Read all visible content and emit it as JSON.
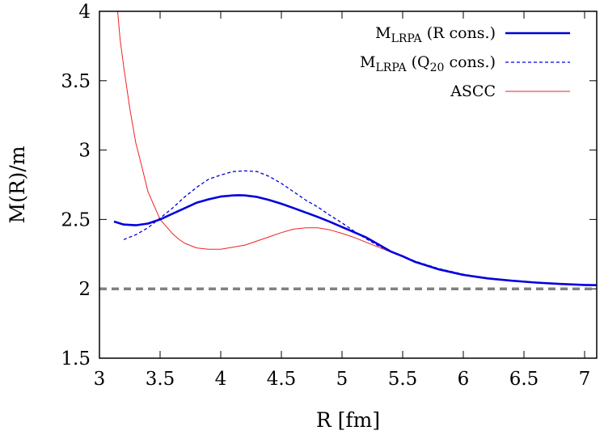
{
  "chart_data": {
    "type": "line",
    "xlabel": "R [fm]",
    "ylabel": "M(R)/m",
    "xlim": [
      3,
      7.1
    ],
    "ylim": [
      1.5,
      4
    ],
    "xticks": [
      "3",
      "3.5",
      "4",
      "4.5",
      "5",
      "5.5",
      "6",
      "6.5",
      "7"
    ],
    "yticks": [
      "1.5",
      "2",
      "2.5",
      "3",
      "3.5",
      "4"
    ],
    "legend_position": "top-right",
    "grid": false,
    "series": [
      {
        "name": "M",
        "name_sub": "LRPA",
        "name_suffix": " (R cons.)",
        "color": "#0000dd",
        "style": "solid-thick",
        "x": [
          3.12,
          3.2,
          3.3,
          3.4,
          3.5,
          3.6,
          3.7,
          3.8,
          3.9,
          4.0,
          4.1,
          4.15,
          4.2,
          4.3,
          4.4,
          4.5,
          4.6,
          4.7,
          4.8,
          4.9,
          5.0,
          5.1,
          5.2,
          5.3,
          5.4,
          5.5,
          5.6,
          5.8,
          6.0,
          6.2,
          6.4,
          6.6,
          6.8,
          7.0,
          7.1
        ],
        "y": [
          2.485,
          2.463,
          2.458,
          2.47,
          2.5,
          2.54,
          2.58,
          2.62,
          2.645,
          2.665,
          2.673,
          2.675,
          2.673,
          2.662,
          2.64,
          2.613,
          2.582,
          2.55,
          2.518,
          2.483,
          2.445,
          2.408,
          2.37,
          2.32,
          2.27,
          2.235,
          2.195,
          2.14,
          2.1,
          2.075,
          2.058,
          2.045,
          2.035,
          2.028,
          2.026
        ]
      },
      {
        "name": "M",
        "name_sub": "LRPA",
        "name_suffix": " (Q",
        "name_sub2": "20",
        "name_suffix2": " cons.)",
        "color": "#0000dd",
        "style": "dashed",
        "x": [
          3.2,
          3.3,
          3.4,
          3.5,
          3.6,
          3.7,
          3.8,
          3.9,
          4.0,
          4.1,
          4.2,
          4.3,
          4.4,
          4.5,
          4.6,
          4.7,
          4.8,
          4.9,
          5.0,
          5.1,
          5.2,
          5.3,
          5.4,
          5.5,
          5.6,
          5.8,
          6.0,
          6.2,
          6.4,
          6.6,
          6.8,
          7.0,
          7.1
        ],
        "y": [
          2.355,
          2.39,
          2.44,
          2.51,
          2.58,
          2.66,
          2.73,
          2.79,
          2.82,
          2.845,
          2.85,
          2.845,
          2.81,
          2.76,
          2.7,
          2.64,
          2.59,
          2.53,
          2.475,
          2.415,
          2.36,
          2.31,
          2.27,
          2.235,
          2.2,
          2.145,
          2.105,
          2.078,
          2.06,
          2.046,
          2.036,
          2.029,
          2.026
        ]
      },
      {
        "name": "ASCC",
        "color": "#ee2222",
        "style": "solid-thin",
        "x": [
          3.15,
          3.17,
          3.2,
          3.25,
          3.3,
          3.35,
          3.4,
          3.5,
          3.6,
          3.65,
          3.7,
          3.8,
          3.9,
          4.0,
          4.1,
          4.2,
          4.3,
          4.4,
          4.5,
          4.6,
          4.7,
          4.8,
          4.9,
          5.0,
          5.1,
          5.2,
          5.3,
          5.4,
          5.5,
          5.6,
          5.8,
          6.0,
          6.2,
          6.4,
          6.6,
          6.8,
          7.0,
          7.1
        ],
        "y": [
          4.0,
          3.8,
          3.6,
          3.3,
          3.05,
          2.88,
          2.7,
          2.5,
          2.4,
          2.36,
          2.33,
          2.295,
          2.285,
          2.285,
          2.3,
          2.315,
          2.345,
          2.375,
          2.405,
          2.43,
          2.44,
          2.44,
          2.425,
          2.4,
          2.37,
          2.335,
          2.3,
          2.265,
          2.23,
          2.195,
          2.14,
          2.1,
          2.075,
          2.058,
          2.045,
          2.035,
          2.028,
          2.026
        ]
      },
      {
        "color": "#808080",
        "style": "reference-dashed",
        "x": [
          3,
          7.1
        ],
        "y": [
          2.0,
          2.0
        ]
      }
    ]
  }
}
